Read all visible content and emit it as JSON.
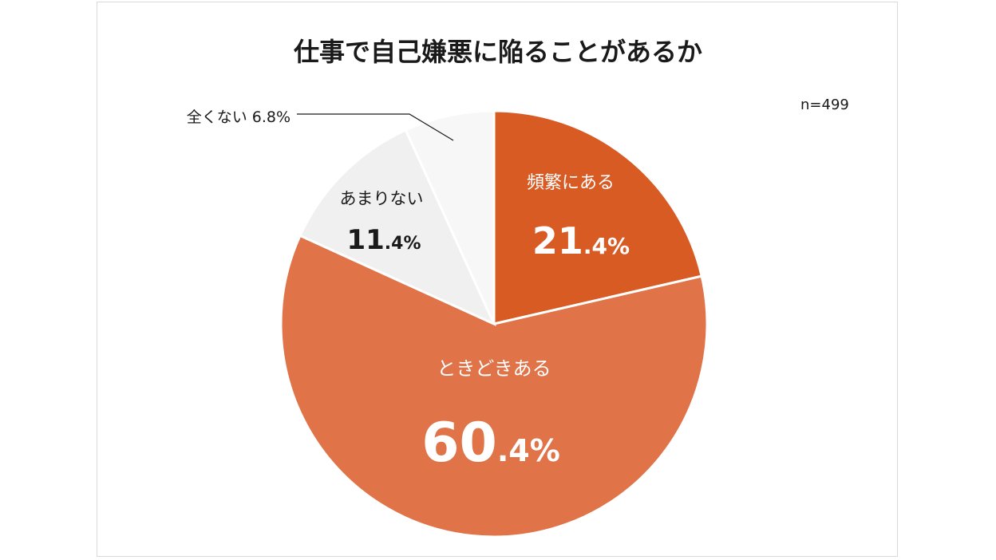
{
  "chart_data": {
    "type": "pie",
    "title": "仕事で自己嫌悪に陥ることがあるか",
    "sample_size": "n=499",
    "slices": [
      {
        "label": "頻繁にある",
        "int": "21",
        "dec": ".4%",
        "value": 21.4,
        "color": "#d95b24",
        "text_color": "#ffffff"
      },
      {
        "label": "ときどきある",
        "int": "60",
        "dec": ".4%",
        "value": 60.4,
        "color": "#e07348",
        "text_color": "#ffffff"
      },
      {
        "label": "あまりない",
        "int": "11",
        "dec": ".4%",
        "value": 11.4,
        "color": "#f0f0f0",
        "text_color": "#1a1a1a"
      },
      {
        "label": "全くない",
        "int": "6",
        "dec": ".8%",
        "value": 6.8,
        "color": "#f7f7f7",
        "text_color": "#1a1a1a"
      }
    ],
    "outside_label": "全くない 6.8%"
  }
}
